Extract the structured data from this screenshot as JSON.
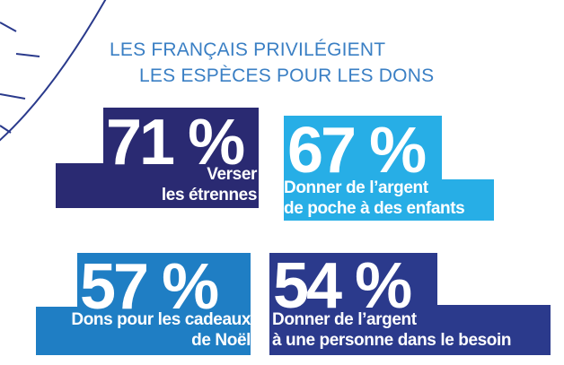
{
  "title": {
    "line1": "LES FRANÇAIS PRIVILÉGIENT",
    "line2": "LES ESPÈCES POUR LES DONS"
  },
  "stats": [
    {
      "value": "71 %",
      "label_line1": "Verser",
      "label_line2": "les étrennes",
      "color": "#2a2a72"
    },
    {
      "value": "67 %",
      "label_line1": "Donner de l’argent",
      "label_line2": "de poche à des enfants",
      "color": "#27aee6"
    },
    {
      "value": "57 %",
      "label_line1": "Dons pour les cadeaux",
      "label_line2": "de Noël",
      "color": "#1f7ec4"
    },
    {
      "value": "54 %",
      "label_line1": "Donner de l’argent",
      "label_line2": "à une personne dans le besoin",
      "color": "#2b3a8c"
    }
  ],
  "colors": {
    "title": "#3a7fc4",
    "decoration_stroke": "#2a3a8c"
  }
}
